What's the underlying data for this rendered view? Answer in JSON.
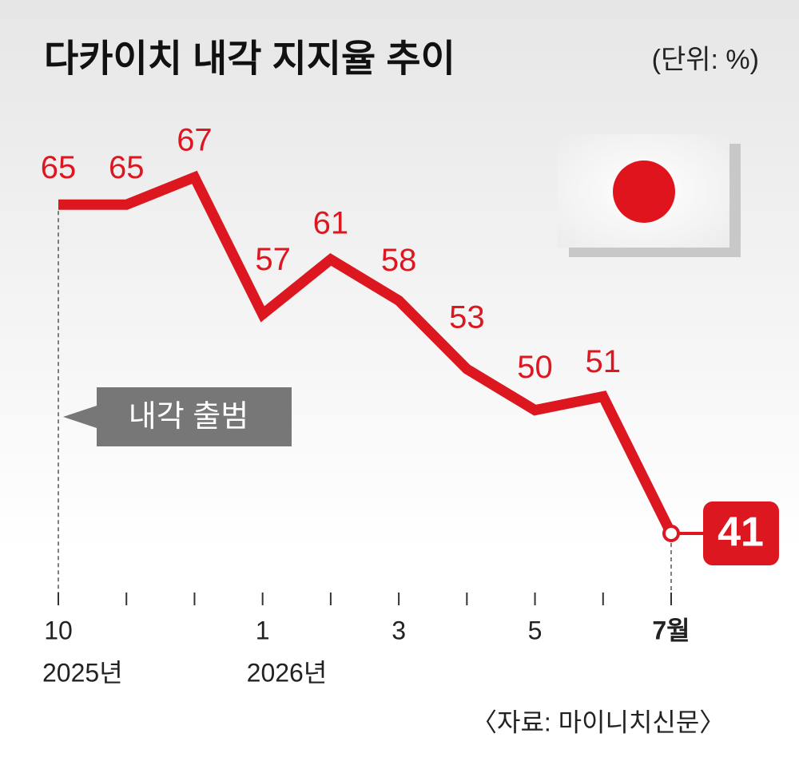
{
  "chart_data": {
    "type": "line",
    "title": "다카이치 내각 지지율 추이",
    "unit": "(단위: %)",
    "categories": [
      "10",
      null,
      null,
      "1",
      null,
      "3",
      null,
      "5",
      null,
      "7월"
    ],
    "year_labels": [
      "2025년",
      null,
      null,
      "2026년",
      null,
      null,
      null,
      null,
      null,
      null
    ],
    "values": [
      65,
      65,
      67,
      57,
      61,
      58,
      53,
      50,
      51,
      41
    ],
    "color": "#dc1720",
    "annotation": "내각 출범",
    "source": "〈자료: 마이니치신문〉"
  }
}
